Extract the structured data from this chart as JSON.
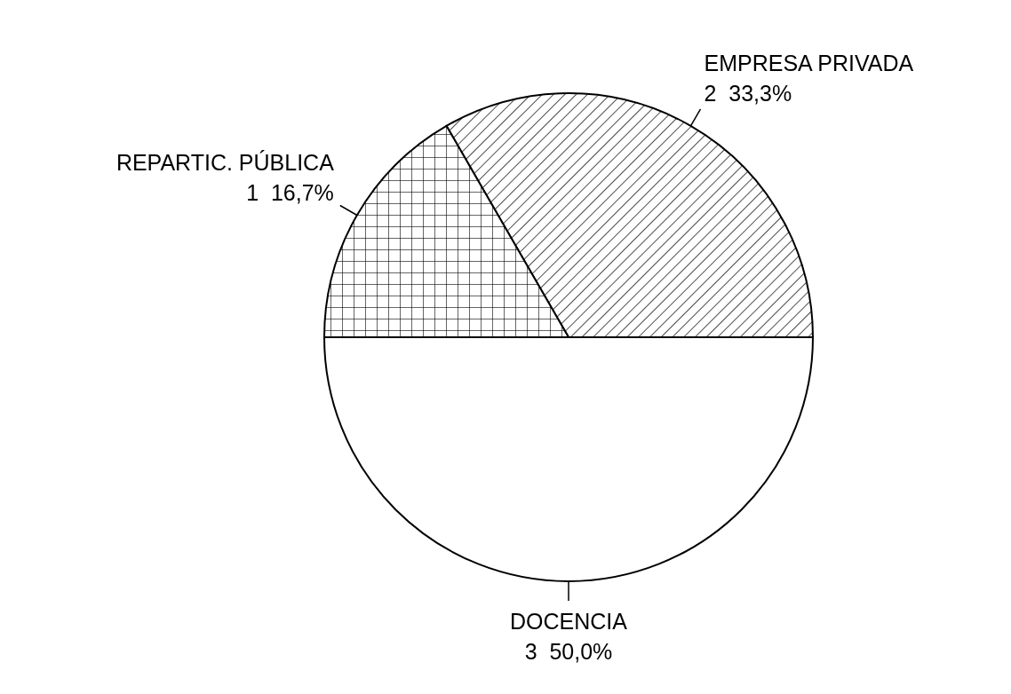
{
  "chart_data": {
    "type": "pie",
    "categories": [
      "EMPRESA PRIVADA",
      "REPARTIC. PÚBLICA",
      "DOCENCIA"
    ],
    "values": [
      2,
      1,
      3
    ],
    "value_labels": [
      "2  33,3%",
      "1  16,7%",
      "3  50,0%"
    ],
    "colors": [
      "#000000",
      "#000000",
      "#ffffff"
    ],
    "legend": false
  }
}
